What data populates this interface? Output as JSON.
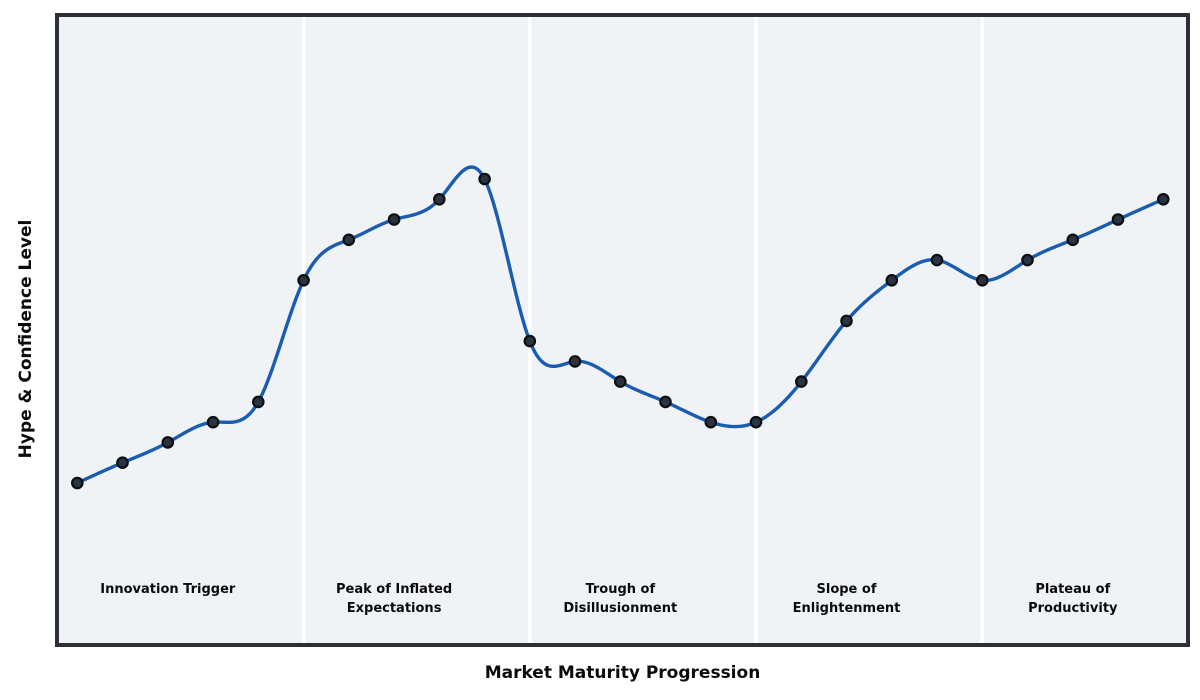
{
  "chart_data": {
    "type": "line",
    "title": "",
    "xlabel": "Market Maturity Progression",
    "ylabel": "Hype & Confidence Level",
    "x": [
      0,
      1,
      2,
      3,
      4,
      5,
      6,
      7,
      8,
      9,
      10,
      11,
      12,
      13,
      14,
      15,
      16,
      17,
      18,
      19,
      20,
      21,
      22,
      23,
      24
    ],
    "values": [
      10,
      15,
      20,
      25,
      30,
      60,
      70,
      75,
      80,
      85,
      45,
      40,
      35,
      30,
      25,
      25,
      35,
      50,
      60,
      65,
      60,
      65,
      70,
      75,
      80
    ],
    "smooth_spline": true,
    "grid": false,
    "legend": "none",
    "tick_labels": "none",
    "phase_boundaries_x": [
      5,
      10,
      15,
      20
    ],
    "phases": [
      {
        "label": "Innovation Trigger",
        "start_index": 0,
        "end_index": 4
      },
      {
        "label": "Peak of Inflated\nExpectations",
        "start_index": 5,
        "end_index": 9
      },
      {
        "label": "Trough of\nDisillusionment",
        "start_index": 10,
        "end_index": 14
      },
      {
        "label": "Slope of\nEnlightenment",
        "start_index": 15,
        "end_index": 19
      },
      {
        "label": "Plateau of\nProductivity",
        "start_index": 20,
        "end_index": 24
      }
    ],
    "colors": {
      "line": "#1a5cb0",
      "marker_fill": "#2a3440",
      "marker_edge": "#0b0e12",
      "band": "#f0f3f6",
      "divider": "#ffffff",
      "frame": "#2c2f36",
      "text": "#0b0b0b",
      "figure_background": "#ffffff"
    }
  }
}
